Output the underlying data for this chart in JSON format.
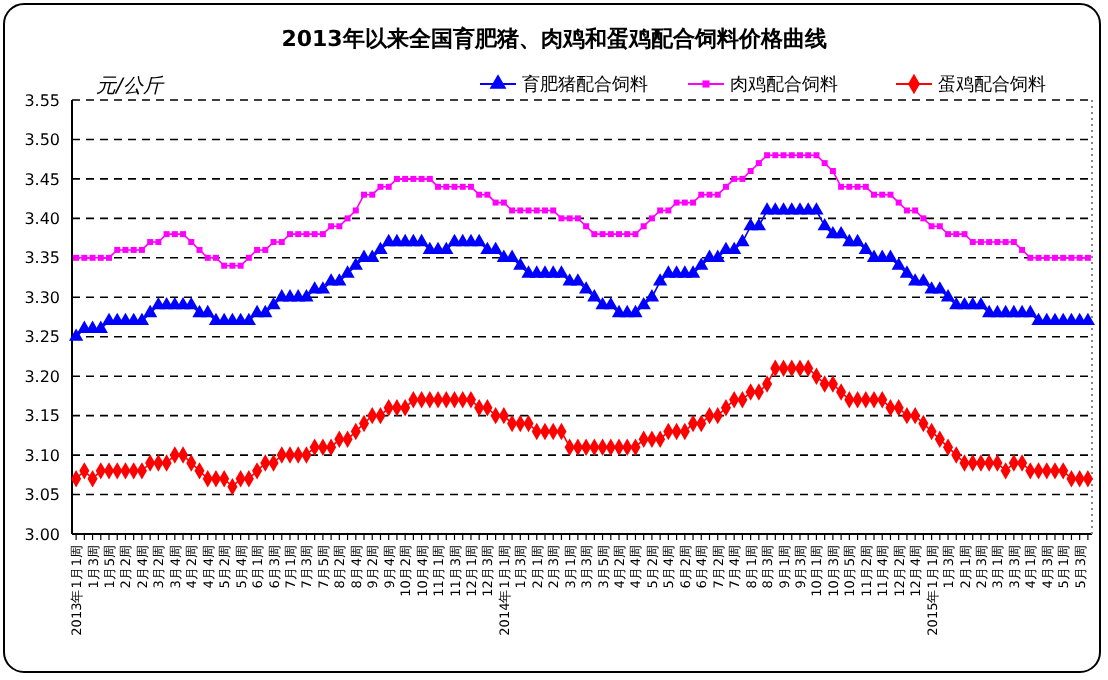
{
  "chart_data": {
    "type": "line",
    "title": "2013年以来全国育肥猪、肉鸡和蛋鸡配合饲料价格曲线",
    "ylabel": "元/公斤",
    "categories": [
      "2013年1月1周",
      null,
      "1月3周",
      null,
      "1月5周",
      null,
      "2月2周",
      null,
      "2月4周",
      null,
      "3月2周",
      null,
      "3月4周",
      null,
      "4月2周",
      null,
      "4月4周",
      null,
      "5月2周",
      null,
      "5月4周",
      null,
      "6月1周",
      null,
      "6月3周",
      null,
      "7月1周",
      null,
      "7月3周",
      null,
      "7月5周",
      null,
      "8月2周",
      null,
      "8月4周",
      null,
      "9月2周",
      null,
      "9月4周",
      null,
      "10月2周",
      null,
      "10月4周",
      null,
      "11月1周",
      null,
      "11月3周",
      null,
      "12月1周",
      null,
      "12月3周",
      null,
      "2014年1月1周",
      null,
      "1月3周",
      null,
      "2月1周",
      null,
      "2月3周",
      null,
      "3月1周",
      null,
      "3月3周",
      null,
      "3月5周",
      null,
      "4月2周",
      null,
      "4月4周",
      null,
      "5月2周",
      null,
      "5月4周",
      null,
      "6月2周",
      null,
      "6月4周",
      null,
      "7月2周",
      null,
      "7月4周",
      null,
      "8月1周",
      null,
      "8月3周",
      null,
      "9月1周",
      null,
      "9月3周",
      null,
      "10月1周",
      null,
      "10月3周",
      null,
      "10月5周",
      null,
      "11月2周",
      null,
      "11月4周",
      null,
      "12月2周",
      null,
      "12月4周",
      null,
      "2015年1月1周",
      null,
      "1月3周",
      null,
      "2月1周",
      null,
      "2月3周",
      null,
      "3月1周",
      null,
      "3月3周",
      null,
      "4月1周",
      null,
      "4月3周",
      null,
      "5月1周",
      null,
      "5月3周",
      null
    ],
    "series": [
      {
        "name": "育肥猪配合饲料",
        "color": "#0000ff",
        "marker": "triangle",
        "values": [
          3.25,
          3.26,
          3.26,
          3.26,
          3.27,
          3.27,
          3.27,
          3.27,
          3.27,
          3.28,
          3.29,
          3.29,
          3.29,
          3.29,
          3.29,
          3.28,
          3.28,
          3.27,
          3.27,
          3.27,
          3.27,
          3.27,
          3.28,
          3.28,
          3.29,
          3.3,
          3.3,
          3.3,
          3.3,
          3.31,
          3.31,
          3.32,
          3.32,
          3.33,
          3.34,
          3.35,
          3.35,
          3.36,
          3.37,
          3.37,
          3.37,
          3.37,
          3.37,
          3.36,
          3.36,
          3.36,
          3.37,
          3.37,
          3.37,
          3.37,
          3.36,
          3.36,
          3.35,
          3.35,
          3.34,
          3.33,
          3.33,
          3.33,
          3.33,
          3.33,
          3.32,
          3.32,
          3.31,
          3.3,
          3.29,
          3.29,
          3.28,
          3.28,
          3.28,
          3.29,
          3.3,
          3.32,
          3.33,
          3.33,
          3.33,
          3.33,
          3.34,
          3.35,
          3.35,
          3.36,
          3.36,
          3.37,
          3.39,
          3.39,
          3.41,
          3.41,
          3.41,
          3.41,
          3.41,
          3.41,
          3.41,
          3.39,
          3.38,
          3.38,
          3.37,
          3.37,
          3.36,
          3.35,
          3.35,
          3.35,
          3.34,
          3.33,
          3.32,
          3.32,
          3.31,
          3.31,
          3.3,
          3.29,
          3.29,
          3.29,
          3.29,
          3.28,
          3.28,
          3.28,
          3.28,
          3.28,
          3.28,
          3.27,
          3.27,
          3.27,
          3.27,
          3.27,
          3.27,
          3.27
        ]
      },
      {
        "name": "肉鸡配合饲料",
        "color": "#ff00ff",
        "marker": "square",
        "values": [
          3.35,
          3.35,
          3.35,
          3.35,
          3.35,
          3.36,
          3.36,
          3.36,
          3.36,
          3.37,
          3.37,
          3.38,
          3.38,
          3.38,
          3.37,
          3.36,
          3.35,
          3.35,
          3.34,
          3.34,
          3.34,
          3.35,
          3.36,
          3.36,
          3.37,
          3.37,
          3.38,
          3.38,
          3.38,
          3.38,
          3.38,
          3.39,
          3.39,
          3.4,
          3.41,
          3.43,
          3.43,
          3.44,
          3.44,
          3.45,
          3.45,
          3.45,
          3.45,
          3.45,
          3.44,
          3.44,
          3.44,
          3.44,
          3.44,
          3.43,
          3.43,
          3.42,
          3.42,
          3.41,
          3.41,
          3.41,
          3.41,
          3.41,
          3.41,
          3.4,
          3.4,
          3.4,
          3.39,
          3.38,
          3.38,
          3.38,
          3.38,
          3.38,
          3.38,
          3.39,
          3.4,
          3.41,
          3.41,
          3.42,
          3.42,
          3.42,
          3.43,
          3.43,
          3.43,
          3.44,
          3.45,
          3.45,
          3.46,
          3.47,
          3.48,
          3.48,
          3.48,
          3.48,
          3.48,
          3.48,
          3.48,
          3.47,
          3.46,
          3.44,
          3.44,
          3.44,
          3.44,
          3.43,
          3.43,
          3.43,
          3.42,
          3.41,
          3.41,
          3.4,
          3.39,
          3.39,
          3.38,
          3.38,
          3.38,
          3.37,
          3.37,
          3.37,
          3.37,
          3.37,
          3.37,
          3.36,
          3.35,
          3.35,
          3.35,
          3.35,
          3.35,
          3.35,
          3.35,
          3.35
        ]
      },
      {
        "name": "蛋鸡配合饲料",
        "color": "#ff0000",
        "marker": "diamond",
        "values": [
          3.07,
          3.08,
          3.07,
          3.08,
          3.08,
          3.08,
          3.08,
          3.08,
          3.08,
          3.09,
          3.09,
          3.09,
          3.1,
          3.1,
          3.09,
          3.08,
          3.07,
          3.07,
          3.07,
          3.06,
          3.07,
          3.07,
          3.08,
          3.09,
          3.09,
          3.1,
          3.1,
          3.1,
          3.1,
          3.11,
          3.11,
          3.11,
          3.12,
          3.12,
          3.13,
          3.14,
          3.15,
          3.15,
          3.16,
          3.16,
          3.16,
          3.17,
          3.17,
          3.17,
          3.17,
          3.17,
          3.17,
          3.17,
          3.17,
          3.16,
          3.16,
          3.15,
          3.15,
          3.14,
          3.14,
          3.14,
          3.13,
          3.13,
          3.13,
          3.13,
          3.11,
          3.11,
          3.11,
          3.11,
          3.11,
          3.11,
          3.11,
          3.11,
          3.11,
          3.12,
          3.12,
          3.12,
          3.13,
          3.13,
          3.13,
          3.14,
          3.14,
          3.15,
          3.15,
          3.16,
          3.17,
          3.17,
          3.18,
          3.18,
          3.19,
          3.21,
          3.21,
          3.21,
          3.21,
          3.21,
          3.2,
          3.19,
          3.19,
          3.18,
          3.17,
          3.17,
          3.17,
          3.17,
          3.17,
          3.16,
          3.16,
          3.15,
          3.15,
          3.14,
          3.13,
          3.12,
          3.11,
          3.1,
          3.09,
          3.09,
          3.09,
          3.09,
          3.09,
          3.08,
          3.09,
          3.09,
          3.08,
          3.08,
          3.08,
          3.08,
          3.08,
          3.07,
          3.07,
          3.07
        ]
      }
    ],
    "ylim": [
      3.0,
      3.55
    ],
    "yticks": [
      {
        "value": 3.0,
        "label": "3.00"
      },
      {
        "value": 3.05,
        "label": "3.05"
      },
      {
        "value": 3.1,
        "label": "3.10"
      },
      {
        "value": 3.15,
        "label": "3.15"
      },
      {
        "value": 3.2,
        "label": "3.20"
      },
      {
        "value": 3.25,
        "label": "3.25"
      },
      {
        "value": 3.3,
        "label": "3.30"
      },
      {
        "value": 3.35,
        "label": "3.35"
      },
      {
        "value": 3.4,
        "label": "3.40"
      },
      {
        "value": 3.45,
        "label": "3.45"
      },
      {
        "value": 3.5,
        "label": "3.50"
      },
      {
        "value": 3.55,
        "label": "3.55"
      }
    ],
    "grid": "y",
    "legend": "top",
    "line_style": "solid"
  }
}
